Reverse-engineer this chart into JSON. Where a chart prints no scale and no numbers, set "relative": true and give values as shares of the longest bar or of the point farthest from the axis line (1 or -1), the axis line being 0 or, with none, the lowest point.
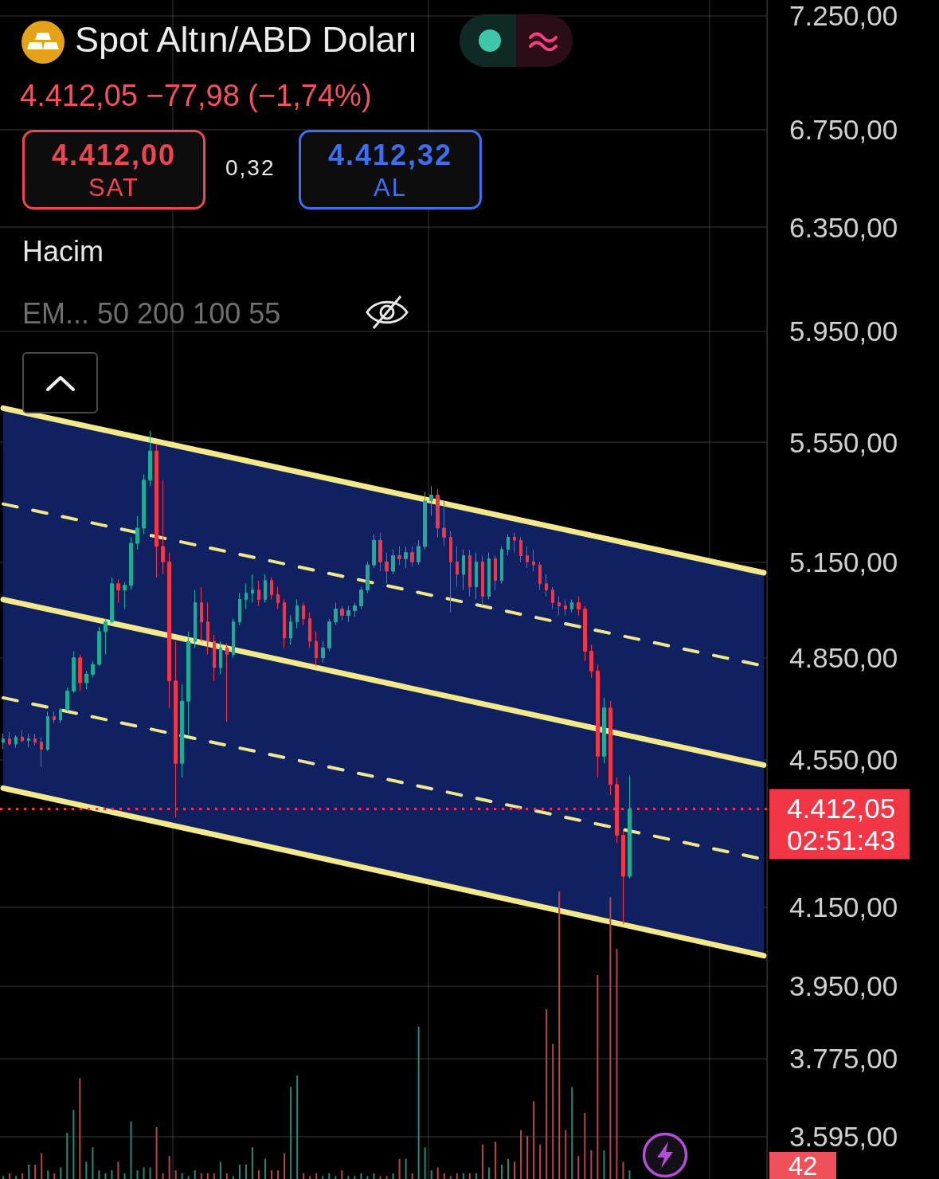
{
  "chart_data": [
    {
      "type": "candlestick",
      "title": "Spot Altın/ABD Doları",
      "subtitle": "4.412,05 −77,98 (−1,74%)",
      "annotations": [
        "4.412,00",
        "SAT",
        "0,32",
        "4.412,32",
        "AL",
        "Hacim",
        "EM... 50 200 100 55"
      ],
      "categories": [
        null,
        null,
        null,
        null,
        null,
        null,
        null,
        null,
        null,
        null,
        null,
        null,
        null,
        null,
        null,
        null,
        null,
        null,
        null,
        null,
        null,
        null,
        null,
        null,
        null,
        null,
        null,
        null,
        null,
        null,
        null,
        null,
        null,
        null,
        null,
        null,
        null,
        null,
        null,
        null,
        null,
        null,
        null,
        null,
        null,
        null,
        null,
        null,
        null,
        null,
        null,
        null,
        null,
        null,
        null,
        null,
        null,
        null,
        null,
        null,
        null,
        null,
        null,
        null,
        null,
        null,
        null,
        null,
        null,
        null,
        null,
        null,
        null,
        null,
        null,
        null,
        null,
        null,
        null,
        null,
        null,
        null,
        null,
        null,
        null,
        null,
        null,
        null,
        null,
        null,
        null,
        null,
        null,
        null,
        null,
        null,
        null,
        null,
        null,
        null,
        null,
        null,
        null,
        null,
        null,
        null,
        null,
        null,
        null,
        null,
        null,
        null,
        null,
        null,
        null,
        null,
        null,
        null,
        null,
        null
      ],
      "ohlc": [
        [
          4600,
          4625,
          4580,
          4610
        ],
        [
          4610,
          4630,
          4590,
          4595
        ],
        [
          4595,
          4620,
          4585,
          4615
        ],
        [
          4615,
          4635,
          4600,
          4605
        ],
        [
          4605,
          4625,
          4585,
          4610
        ],
        [
          4610,
          4625,
          4590,
          4600
        ],
        [
          4600,
          4615,
          4530,
          4580
        ],
        [
          4580,
          4690,
          4575,
          4675
        ],
        [
          4675,
          4690,
          4655,
          4665
        ],
        [
          4665,
          4700,
          4655,
          4695
        ],
        [
          4695,
          4760,
          4690,
          4750
        ],
        [
          4750,
          4870,
          4745,
          4850
        ],
        [
          4850,
          4860,
          4750,
          4775
        ],
        [
          4775,
          4810,
          4755,
          4800
        ],
        [
          4800,
          4840,
          4790,
          4830
        ],
        [
          4830,
          4945,
          4825,
          4930
        ],
        [
          4930,
          4970,
          4860,
          4960
        ],
        [
          4960,
          5100,
          4955,
          5080
        ],
        [
          5080,
          5095,
          5020,
          5060
        ],
        [
          5060,
          5085,
          5000,
          5075
        ],
        [
          5075,
          5230,
          5060,
          5210
        ],
        [
          5210,
          5300,
          5190,
          5260
        ],
        [
          5260,
          5440,
          5240,
          5420
        ],
        [
          5420,
          5590,
          5400,
          5520
        ],
        [
          5520,
          5545,
          5100,
          5200
        ],
        [
          5200,
          5420,
          5110,
          5150
        ],
        [
          5150,
          5180,
          4700,
          4780
        ],
        [
          4780,
          4900,
          4390,
          4540
        ],
        [
          4540,
          4770,
          4500,
          4720
        ],
        [
          4720,
          4930,
          4620,
          4900
        ],
        [
          4900,
          5060,
          4880,
          5020
        ],
        [
          5020,
          5070,
          4900,
          4960
        ],
        [
          4960,
          5020,
          4860,
          4900
        ],
        [
          4900,
          4920,
          4780,
          4820
        ],
        [
          4820,
          4900,
          4800,
          4880
        ],
        [
          4880,
          4895,
          4660,
          4860
        ],
        [
          4860,
          4970,
          4850,
          4960
        ],
        [
          4960,
          5050,
          4950,
          5030
        ],
        [
          5030,
          5080,
          5000,
          5050
        ],
        [
          5050,
          5110,
          5020,
          5060
        ],
        [
          5060,
          5090,
          5010,
          5030
        ],
        [
          5030,
          5110,
          5020,
          5090
        ],
        [
          5090,
          5100,
          5030,
          5045
        ],
        [
          5045,
          5070,
          5000,
          5020
        ],
        [
          5020,
          5030,
          4880,
          4910
        ],
        [
          4910,
          4980,
          4890,
          4960
        ],
        [
          4960,
          5030,
          4940,
          5010
        ],
        [
          5010,
          5020,
          4950,
          4970
        ],
        [
          4970,
          4990,
          4880,
          4900
        ],
        [
          4900,
          4930,
          4825,
          4850
        ],
        [
          4850,
          4900,
          4835,
          4880
        ],
        [
          4880,
          4970,
          4870,
          4960
        ],
        [
          4960,
          5020,
          4950,
          5000
        ],
        [
          5000,
          5010,
          4965,
          4980
        ],
        [
          4980,
          5010,
          4960,
          4995
        ],
        [
          4995,
          5020,
          4975,
          5010
        ],
        [
          5010,
          5070,
          5000,
          5060
        ],
        [
          5060,
          5150,
          5050,
          5140
        ],
        [
          5140,
          5240,
          5130,
          5220
        ],
        [
          5220,
          5245,
          5120,
          5150
        ],
        [
          5150,
          5180,
          5080,
          5120
        ],
        [
          5120,
          5190,
          5110,
          5170
        ],
        [
          5170,
          5200,
          5140,
          5160
        ],
        [
          5160,
          5200,
          5130,
          5180
        ],
        [
          5180,
          5200,
          5135,
          5150
        ],
        [
          5150,
          5220,
          5140,
          5200
        ],
        [
          5200,
          5380,
          5190,
          5350
        ],
        [
          5350,
          5400,
          5300,
          5370
        ],
        [
          5370,
          5390,
          5230,
          5260
        ],
        [
          5260,
          5350,
          5200,
          5230
        ],
        [
          5230,
          5250,
          4990,
          5150
        ],
        [
          5150,
          5200,
          5070,
          5110
        ],
        [
          5110,
          5190,
          5060,
          5170
        ],
        [
          5170,
          5190,
          5040,
          5070
        ],
        [
          5070,
          5180,
          5030,
          5150
        ],
        [
          5150,
          5170,
          5010,
          5040
        ],
        [
          5040,
          5180,
          5030,
          5160
        ],
        [
          5160,
          5170,
          5060,
          5090
        ],
        [
          5090,
          5200,
          5080,
          5190
        ],
        [
          5190,
          5240,
          5170,
          5230
        ],
        [
          5230,
          5245,
          5180,
          5220
        ],
        [
          5220,
          5230,
          5150,
          5170
        ],
        [
          5170,
          5200,
          5130,
          5150
        ],
        [
          5150,
          5190,
          5120,
          5140
        ],
        [
          5140,
          5150,
          5060,
          5080
        ],
        [
          5080,
          5110,
          5040,
          5060
        ],
        [
          5060,
          5070,
          5000,
          5020
        ],
        [
          5020,
          5040,
          4980,
          5010
        ],
        [
          5010,
          5030,
          4980,
          5000
        ],
        [
          5000,
          5030,
          4990,
          5020
        ],
        [
          5020,
          5040,
          4980,
          5000
        ],
        [
          5000,
          5010,
          4840,
          4870
        ],
        [
          4870,
          4890,
          4790,
          4810
        ],
        [
          4810,
          4830,
          4500,
          4560
        ],
        [
          4560,
          4730,
          4540,
          4700
        ],
        [
          4700,
          4720,
          4450,
          4480
        ],
        [
          4480,
          4500,
          4320,
          4340
        ],
        [
          4340,
          4355,
          4105,
          4230
        ],
        [
          4230,
          4505,
          4225,
          4412
        ],
        null,
        null,
        null,
        null,
        null,
        null,
        null,
        null,
        null,
        null,
        null,
        null,
        null,
        null,
        null,
        null,
        null,
        null,
        null,
        null,
        null
      ],
      "series": [
        {
          "type": "line",
          "color": "#f4e98a",
          "values": [
            5670,
            null,
            null,
            null,
            null,
            null,
            null,
            null,
            null,
            null,
            null,
            null,
            null,
            null,
            null,
            null,
            null,
            null,
            null,
            null,
            null,
            null,
            null,
            null,
            null,
            null,
            null,
            null,
            null,
            null,
            null,
            null,
            null,
            null,
            null,
            null,
            null,
            null,
            null,
            null,
            null,
            null,
            null,
            null,
            null,
            null,
            null,
            null,
            null,
            null,
            null,
            null,
            null,
            null,
            null,
            null,
            null,
            null,
            null,
            null,
            null,
            null,
            null,
            null,
            null,
            null,
            null,
            null,
            null,
            null,
            null,
            null,
            null,
            null,
            null,
            null,
            null,
            null,
            null,
            null,
            null,
            null,
            null,
            null,
            null,
            null,
            null,
            null,
            null,
            null,
            null,
            null,
            null,
            null,
            null,
            null,
            null,
            null,
            null,
            null,
            null,
            null,
            null,
            null,
            null,
            null,
            null,
            null,
            null,
            null,
            null,
            null,
            null,
            null,
            null,
            null,
            null,
            null,
            null,
            5115
          ]
        },
        {
          "type": "line",
          "color": "#f0e68c",
          "line_style": "dashed",
          "values": [
            5340,
            null,
            null,
            null,
            null,
            null,
            null,
            null,
            null,
            null,
            null,
            null,
            null,
            null,
            null,
            null,
            null,
            null,
            null,
            null,
            null,
            null,
            null,
            null,
            null,
            null,
            null,
            null,
            null,
            null,
            null,
            null,
            null,
            null,
            null,
            null,
            null,
            null,
            null,
            null,
            null,
            null,
            null,
            null,
            null,
            null,
            null,
            null,
            null,
            null,
            null,
            null,
            null,
            null,
            null,
            null,
            null,
            null,
            null,
            null,
            null,
            null,
            null,
            null,
            null,
            null,
            null,
            null,
            null,
            null,
            null,
            null,
            null,
            null,
            null,
            null,
            null,
            null,
            null,
            null,
            null,
            null,
            null,
            null,
            null,
            null,
            null,
            null,
            null,
            null,
            null,
            null,
            null,
            null,
            null,
            null,
            null,
            null,
            null,
            null,
            null,
            null,
            null,
            null,
            null,
            null,
            null,
            null,
            null,
            null,
            null,
            null,
            null,
            null,
            null,
            null,
            null,
            null,
            null,
            4825
          ]
        },
        {
          "type": "line",
          "color": "#f4e98a",
          "values": [
            5030,
            null,
            null,
            null,
            null,
            null,
            null,
            null,
            null,
            null,
            null,
            null,
            null,
            null,
            null,
            null,
            null,
            null,
            null,
            null,
            null,
            null,
            null,
            null,
            null,
            null,
            null,
            null,
            null,
            null,
            null,
            null,
            null,
            null,
            null,
            null,
            null,
            null,
            null,
            null,
            null,
            null,
            null,
            null,
            null,
            null,
            null,
            null,
            null,
            null,
            null,
            null,
            null,
            null,
            null,
            null,
            null,
            null,
            null,
            null,
            null,
            null,
            null,
            null,
            null,
            null,
            null,
            null,
            null,
            null,
            null,
            null,
            null,
            null,
            null,
            null,
            null,
            null,
            null,
            null,
            null,
            null,
            null,
            null,
            null,
            null,
            null,
            null,
            null,
            null,
            null,
            null,
            null,
            null,
            null,
            null,
            null,
            null,
            null,
            null,
            null,
            null,
            null,
            null,
            null,
            null,
            null,
            null,
            null,
            null,
            null,
            null,
            null,
            null,
            null,
            null,
            null,
            null,
            null,
            4535
          ],
          "upper": [
            5670,
            null,
            null,
            null,
            null,
            null,
            null,
            null,
            null,
            null,
            null,
            null,
            null,
            null,
            null,
            null,
            null,
            null,
            null,
            null,
            null,
            null,
            null,
            null,
            null,
            null,
            null,
            null,
            null,
            null,
            null,
            null,
            null,
            null,
            null,
            null,
            null,
            null,
            null,
            null,
            null,
            null,
            null,
            null,
            null,
            null,
            null,
            null,
            null,
            null,
            null,
            null,
            null,
            null,
            null,
            null,
            null,
            null,
            null,
            null,
            null,
            null,
            null,
            null,
            null,
            null,
            null,
            null,
            null,
            null,
            null,
            null,
            null,
            null,
            null,
            null,
            null,
            null,
            null,
            null,
            null,
            null,
            null,
            null,
            null,
            null,
            null,
            null,
            null,
            null,
            null,
            null,
            null,
            null,
            null,
            null,
            null,
            null,
            null,
            null,
            null,
            null,
            null,
            null,
            null,
            null,
            null,
            null,
            null,
            null,
            null,
            null,
            null,
            null,
            null,
            null,
            null,
            null,
            null,
            5115
          ],
          "lower": [
            4470,
            null,
            null,
            null,
            null,
            null,
            null,
            null,
            null,
            null,
            null,
            null,
            null,
            null,
            null,
            null,
            null,
            null,
            null,
            null,
            null,
            null,
            null,
            null,
            null,
            null,
            null,
            null,
            null,
            null,
            null,
            null,
            null,
            null,
            null,
            null,
            null,
            null,
            null,
            null,
            null,
            null,
            null,
            null,
            null,
            null,
            null,
            null,
            null,
            null,
            null,
            null,
            null,
            null,
            null,
            null,
            null,
            null,
            null,
            null,
            null,
            null,
            null,
            null,
            null,
            null,
            null,
            null,
            null,
            null,
            null,
            null,
            null,
            null,
            null,
            null,
            null,
            null,
            null,
            null,
            null,
            null,
            null,
            null,
            null,
            null,
            null,
            null,
            null,
            null,
            null,
            null,
            null,
            null,
            null,
            null,
            null,
            null,
            null,
            null,
            null,
            null,
            null,
            null,
            null,
            null,
            null,
            null,
            null,
            null,
            null,
            null,
            null,
            null,
            null,
            null,
            null,
            null,
            null,
            4025
          ]
        },
        {
          "type": "line",
          "color": "#f0e68c",
          "line_style": "dashed",
          "values": [
            4730,
            null,
            null,
            null,
            null,
            null,
            null,
            null,
            null,
            null,
            null,
            null,
            null,
            null,
            null,
            null,
            null,
            null,
            null,
            null,
            null,
            null,
            null,
            null,
            null,
            null,
            null,
            null,
            null,
            null,
            null,
            null,
            null,
            null,
            null,
            null,
            null,
            null,
            null,
            null,
            null,
            null,
            null,
            null,
            null,
            null,
            null,
            null,
            null,
            null,
            null,
            null,
            null,
            null,
            null,
            null,
            null,
            null,
            null,
            null,
            null,
            null,
            null,
            null,
            null,
            null,
            null,
            null,
            null,
            null,
            null,
            null,
            null,
            null,
            null,
            null,
            null,
            null,
            null,
            null,
            null,
            null,
            null,
            null,
            null,
            null,
            null,
            null,
            null,
            null,
            null,
            null,
            null,
            null,
            null,
            null,
            null,
            null,
            null,
            null,
            null,
            null,
            null,
            null,
            null,
            null,
            null,
            null,
            null,
            null,
            null,
            null,
            null,
            null,
            null,
            null,
            null,
            null,
            null,
            4275
          ]
        },
        {
          "type": "line",
          "color": "#f4e98a",
          "values": [
            4470,
            null,
            null,
            null,
            null,
            null,
            null,
            null,
            null,
            null,
            null,
            null,
            null,
            null,
            null,
            null,
            null,
            null,
            null,
            null,
            null,
            null,
            null,
            null,
            null,
            null,
            null,
            null,
            null,
            null,
            null,
            null,
            null,
            null,
            null,
            null,
            null,
            null,
            null,
            null,
            null,
            null,
            null,
            null,
            null,
            null,
            null,
            null,
            null,
            null,
            null,
            null,
            null,
            null,
            null,
            null,
            null,
            null,
            null,
            null,
            null,
            null,
            null,
            null,
            null,
            null,
            null,
            null,
            null,
            null,
            null,
            null,
            null,
            null,
            null,
            null,
            null,
            null,
            null,
            null,
            null,
            null,
            null,
            null,
            null,
            null,
            null,
            null,
            null,
            null,
            null,
            null,
            null,
            null,
            null,
            null,
            null,
            null,
            null,
            null,
            null,
            null,
            null,
            null,
            null,
            null,
            null,
            null,
            null,
            null,
            null,
            null,
            null,
            null,
            null,
            null,
            null,
            null,
            null,
            4025
          ]
        }
      ],
      "ylim": [
        3500,
        7320
      ],
      "yticks": [
        {
          "value": 3595,
          "label": "3.595,00"
        },
        {
          "value": 3775,
          "label": "3.775,00"
        },
        {
          "value": 3950,
          "label": "3.950,00"
        },
        {
          "value": 4150,
          "label": "4.150,00"
        },
        {
          "value": 4550,
          "label": "4.550,00"
        },
        {
          "value": 4850,
          "label": "4.850,00"
        },
        {
          "value": 5150,
          "label": "5.150,00"
        },
        {
          "value": 5550,
          "label": "5.550,00"
        },
        {
          "value": 5950,
          "label": "5.950,00"
        },
        {
          "value": 6350,
          "label": "6.350,00"
        },
        {
          "value": 6750,
          "label": "6.750,00"
        },
        {
          "value": 7250,
          "label": "7.250,00"
        }
      ],
      "log": true,
      "grid": true,
      "tick_labels": "y",
      "ref_lines": [
        {
          "axis": "y",
          "value": 4412.05,
          "label": "4.412,05\n02:51:43",
          "color": "#f23645",
          "line_style": "dotted"
        }
      ]
    },
    {
      "type": "bar",
      "relative": true,
      "categories": [
        null,
        null,
        null,
        null,
        null,
        null,
        null,
        null,
        null,
        null,
        null,
        null,
        null,
        null,
        null,
        null,
        null,
        null,
        null,
        null,
        null,
        null,
        null,
        null,
        null,
        null,
        null,
        null,
        null,
        null,
        null,
        null,
        null,
        null,
        null,
        null,
        null,
        null,
        null,
        null,
        null,
        null,
        null,
        null,
        null,
        null,
        null,
        null,
        null,
        null,
        null,
        null,
        null,
        null,
        null,
        null,
        null,
        null,
        null,
        null,
        null,
        null,
        null,
        null,
        null,
        null,
        null,
        null,
        null,
        null,
        null,
        null,
        null,
        null,
        null,
        null,
        null,
        null,
        null,
        null,
        null,
        null,
        null,
        null,
        null,
        null,
        null,
        null,
        null,
        null,
        null,
        null,
        null,
        null,
        null,
        null,
        null,
        null,
        null,
        null,
        null,
        null,
        null,
        null,
        null,
        null,
        null,
        null,
        null,
        null,
        null,
        null,
        null,
        null,
        null,
        null,
        null,
        null,
        null,
        null
      ],
      "values": [
        0.01,
        0.02,
        0.01,
        0.02,
        0.05,
        0.05,
        0.09,
        0.03,
        0.02,
        0.04,
        0.16,
        0.24,
        0.35,
        0.06,
        0.11,
        0.03,
        0.02,
        0.03,
        0.06,
        0.02,
        0.2,
        0.03,
        0.04,
        0.04,
        0.18,
        0.02,
        0.08,
        0.03,
        0.02,
        0.01,
        0.03,
        0.02,
        0.02,
        0.02,
        0.06,
        0.02,
        0.01,
        0.05,
        0.05,
        0.11,
        0.03,
        0.07,
        0.03,
        0.03,
        0.09,
        0.32,
        0.36,
        0.02,
        0.01,
        0.02,
        0.01,
        0.02,
        0.01,
        0.03,
        0.01,
        0.01,
        0.02,
        0.01,
        0.02,
        0.01,
        0.01,
        0.02,
        0.07,
        0.07,
        0.02,
        0.53,
        0.11,
        0.03,
        0.04,
        0.02,
        0.01,
        0.02,
        0.02,
        0.02,
        0.02,
        0.12,
        0.04,
        0.13,
        0.05,
        0.07,
        0.06,
        0.17,
        0.15,
        0.27,
        0.12,
        0.59,
        0.47,
        1,
        0.17,
        0.32,
        0.08,
        0.23,
        0.1,
        0.71,
        0.1,
        0.98,
        0.8,
        0.06,
        0.03,
        null,
        null,
        null,
        null,
        null,
        null,
        null,
        null,
        null,
        null,
        null,
        null,
        null,
        null,
        null,
        null,
        null,
        null,
        null,
        null,
        null
      ],
      "colors": [
        "#23897b",
        "#b8444d",
        "#23897b",
        "#b8444d",
        "#23897b",
        "#b8444d",
        "#b8444d",
        "#23897b",
        "#b8444d",
        "#23897b",
        "#23897b",
        "#23897b",
        "#b8444d",
        "#23897b",
        "#23897b",
        "#23897b",
        "#23897b",
        "#23897b",
        "#b8444d",
        "#23897b",
        "#23897b",
        "#23897b",
        "#23897b",
        "#23897b",
        "#b8444d",
        "#b8444d",
        "#b8444d",
        "#b8444d",
        "#23897b",
        "#23897b",
        "#23897b",
        "#b8444d",
        "#b8444d",
        "#b8444d",
        "#23897b",
        "#b8444d",
        "#23897b",
        "#23897b",
        "#23897b",
        "#23897b",
        "#b8444d",
        "#23897b",
        "#b8444d",
        "#b8444d",
        "#b8444d",
        "#23897b",
        "#23897b",
        "#b8444d",
        "#b8444d",
        "#b8444d",
        "#23897b",
        "#23897b",
        "#23897b",
        "#b8444d",
        "#23897b",
        "#23897b",
        "#23897b",
        "#23897b",
        "#23897b",
        "#b8444d",
        "#b8444d",
        "#23897b",
        "#b8444d",
        "#23897b",
        "#b8444d",
        "#23897b",
        "#23897b",
        "#23897b",
        "#b8444d",
        "#b8444d",
        "#b8444d",
        "#b8444d",
        "#23897b",
        "#b8444d",
        "#23897b",
        "#b8444d",
        "#23897b",
        "#b8444d",
        "#23897b",
        "#23897b",
        "#b8444d",
        "#b8444d",
        "#b8444d",
        "#b8444d",
        "#b8444d",
        "#b8444d",
        "#b8444d",
        "#b8444d",
        "#b8444d",
        "#23897b",
        "#b8444d",
        "#b8444d",
        "#b8444d",
        "#b8444d",
        "#23897b",
        "#b8444d",
        "#b8444d",
        "#b8444d",
        "#23897b",
        null,
        null,
        null,
        null,
        null,
        null,
        null,
        null,
        null,
        null,
        null,
        null,
        null,
        null,
        null,
        null,
        null,
        null,
        null,
        null,
        null
      ],
      "annotations": [
        "42"
      ]
    }
  ]
}
